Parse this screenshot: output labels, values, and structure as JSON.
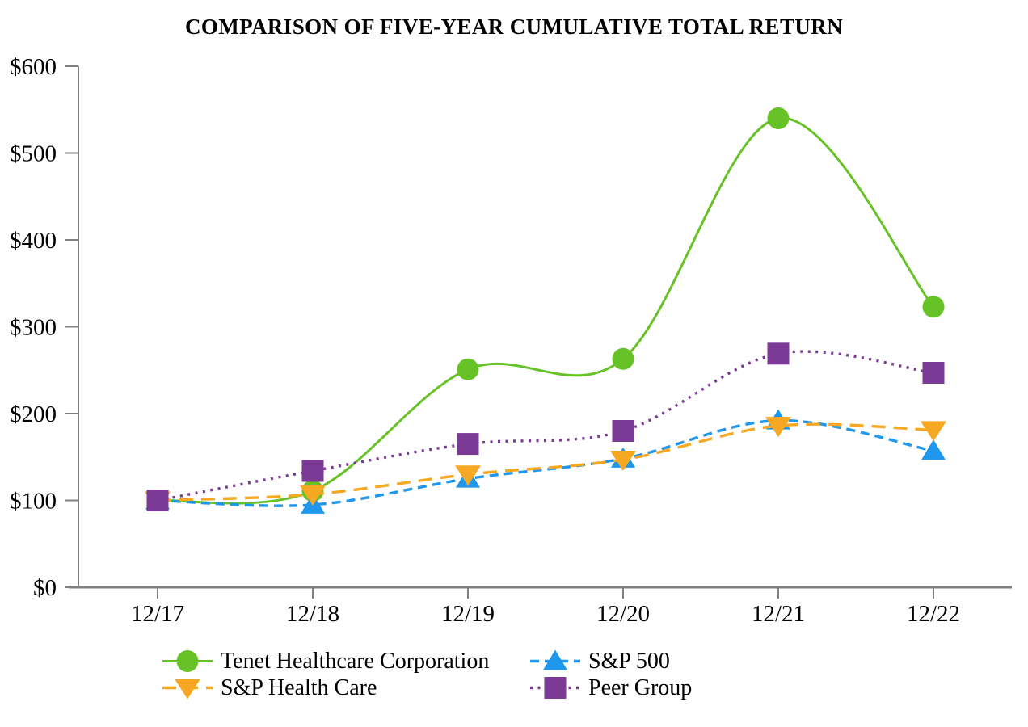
{
  "chart_data": {
    "type": "line",
    "title": "COMPARISON OF FIVE-YEAR CUMULATIVE TOTAL RETURN",
    "categories": [
      "12/17",
      "12/18",
      "12/19",
      "12/20",
      "12/21",
      "12/22"
    ],
    "xlabel": "",
    "ylabel": "",
    "ylim": [
      0,
      600
    ],
    "y_tick_step": 100,
    "y_tick_labels": [
      "$0",
      "$100",
      "$200",
      "$300",
      "$400",
      "$500",
      "$600"
    ],
    "grid": false,
    "legend_position": "bottom",
    "axis_color": "#808080",
    "text_color": "#000000",
    "background_color": "#ffffff",
    "series": [
      {
        "name": "Tenet Healthcare Corporation",
        "color": "#66c226",
        "line_style": "solid",
        "marker": "circle",
        "values": [
          100,
          111,
          251,
          263,
          540,
          323
        ]
      },
      {
        "name": "S&P 500",
        "color": "#1f97ec",
        "line_style": "dashed",
        "marker": "triangle-up",
        "values": [
          100,
          95,
          125,
          148,
          192,
          157
        ]
      },
      {
        "name": "S&P Health Care",
        "color": "#f7a823",
        "line_style": "long-dash",
        "marker": "triangle-down",
        "values": [
          100,
          107,
          130,
          147,
          186,
          181
        ]
      },
      {
        "name": "Peer Group",
        "color": "#7b3a96",
        "line_style": "dotted",
        "marker": "square",
        "values": [
          100,
          134,
          165,
          180,
          269,
          247
        ]
      }
    ]
  }
}
